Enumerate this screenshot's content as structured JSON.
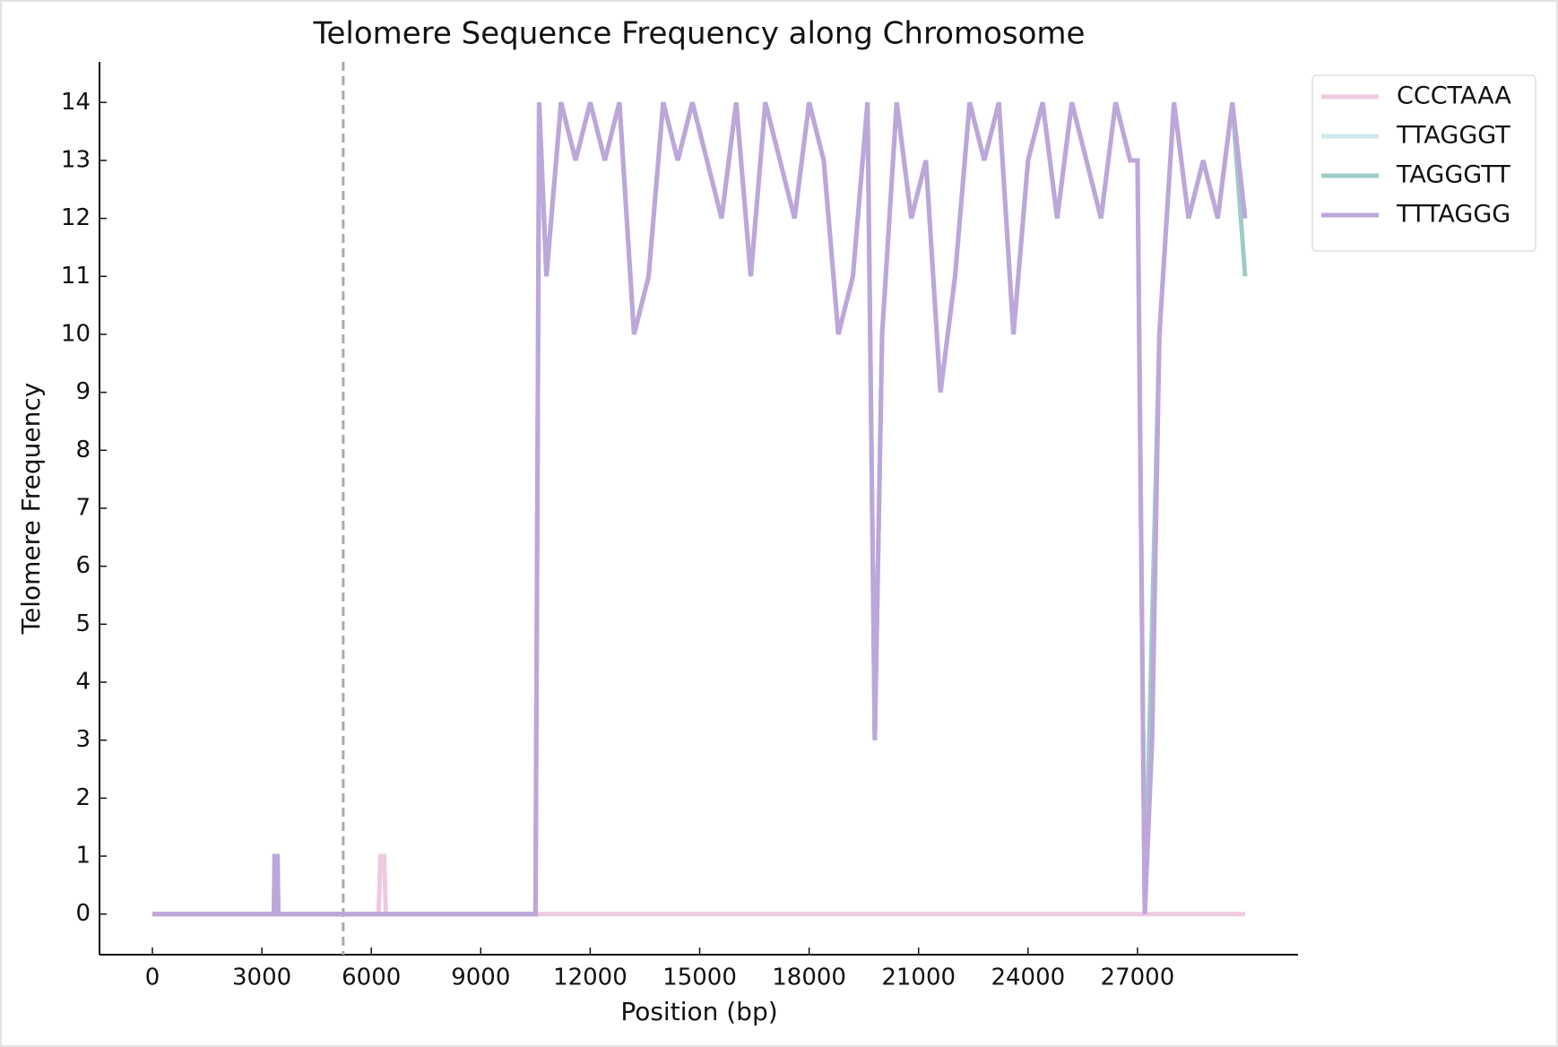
{
  "chart_data": {
    "type": "line",
    "title": "Telomere Sequence Frequency along Chromosome",
    "x_label": "Position (bp)",
    "y_label": "Telomere Frequency",
    "x": [
      0,
      3330,
      3350,
      3430,
      3450,
      6200,
      6250,
      6350,
      6400,
      10500,
      10600,
      10800,
      11200,
      11600,
      12000,
      12400,
      12800,
      13200,
      13600,
      14000,
      14400,
      14800,
      15200,
      15600,
      16000,
      16400,
      16800,
      17200,
      17600,
      18000,
      18400,
      18800,
      19200,
      19600,
      19800,
      20000,
      20400,
      20800,
      21200,
      21600,
      22000,
      22400,
      22800,
      23200,
      23600,
      24000,
      24400,
      24800,
      25200,
      25600,
      26000,
      26400,
      26800,
      27000,
      27200,
      27400,
      27600,
      28000,
      28400,
      28800,
      29200,
      29600,
      29950
    ],
    "series": [
      {
        "name": "CCCTAAA",
        "color": "#f0c9e1",
        "values": [
          0,
          0,
          0,
          0,
          0,
          0,
          1,
          1,
          0,
          0,
          0,
          0,
          0,
          0,
          0,
          0,
          0,
          0,
          0,
          0,
          0,
          0,
          0,
          0,
          0,
          0,
          0,
          0,
          0,
          0,
          0,
          0,
          0,
          0,
          0,
          0,
          0,
          0,
          0,
          0,
          0,
          0,
          0,
          0,
          0,
          0,
          0,
          0,
          0,
          0,
          0,
          0,
          0,
          0,
          0,
          0,
          0,
          0,
          0,
          0,
          0,
          0,
          0
        ]
      },
      {
        "name": "TTAGGGT",
        "color": "#cfe7ee",
        "values": [
          0,
          0,
          1,
          1,
          0,
          0,
          0,
          0,
          0,
          0,
          14,
          11,
          14,
          13,
          14,
          13,
          14,
          10,
          11,
          14,
          13,
          14,
          13,
          12,
          14,
          11,
          14,
          13,
          12,
          14,
          13,
          10,
          11,
          14,
          3,
          10,
          14,
          12,
          13,
          9,
          11,
          14,
          13,
          14,
          10,
          13,
          14,
          12,
          14,
          13,
          12,
          14,
          13,
          13,
          0,
          3,
          10,
          14,
          12,
          13,
          12,
          14,
          12
        ]
      },
      {
        "name": "TAGGGTT",
        "color": "#9ecbc8",
        "values": [
          0,
          0,
          1,
          1,
          0,
          0,
          0,
          0,
          0,
          0,
          14,
          11,
          14,
          13,
          14,
          13,
          14,
          10,
          11,
          14,
          13,
          14,
          13,
          12,
          14,
          11,
          14,
          13,
          12,
          14,
          13,
          10,
          11,
          14,
          3,
          10,
          14,
          12,
          13,
          9,
          11,
          14,
          13,
          14,
          10,
          13,
          14,
          12,
          14,
          13,
          12,
          14,
          13,
          13,
          0,
          5,
          10,
          14,
          12,
          13,
          12,
          14,
          11
        ]
      },
      {
        "name": "TTTAGGG",
        "color": "#bda6da",
        "values": [
          0,
          0,
          1,
          1,
          0,
          0,
          0,
          0,
          0,
          0,
          14,
          11,
          14,
          13,
          14,
          13,
          14,
          10,
          11,
          14,
          13,
          14,
          13,
          12,
          14,
          11,
          14,
          13,
          12,
          14,
          13,
          10,
          11,
          14,
          3,
          10,
          14,
          12,
          13,
          9,
          11,
          14,
          13,
          14,
          10,
          13,
          14,
          12,
          14,
          13,
          12,
          14,
          13,
          13,
          0,
          3,
          10,
          14,
          12,
          13,
          12,
          14,
          12
        ]
      }
    ],
    "vline": 5230,
    "xlim": [
      -1450,
      31400
    ],
    "ylim": [
      -0.7,
      14.7
    ],
    "xticks": [
      0,
      3000,
      6000,
      9000,
      12000,
      15000,
      18000,
      21000,
      24000,
      27000
    ],
    "yticks": [
      0,
      1,
      2,
      3,
      4,
      5,
      6,
      7,
      8,
      9,
      10,
      11,
      12,
      13,
      14
    ],
    "grid": false,
    "legend": "upper right outside"
  }
}
